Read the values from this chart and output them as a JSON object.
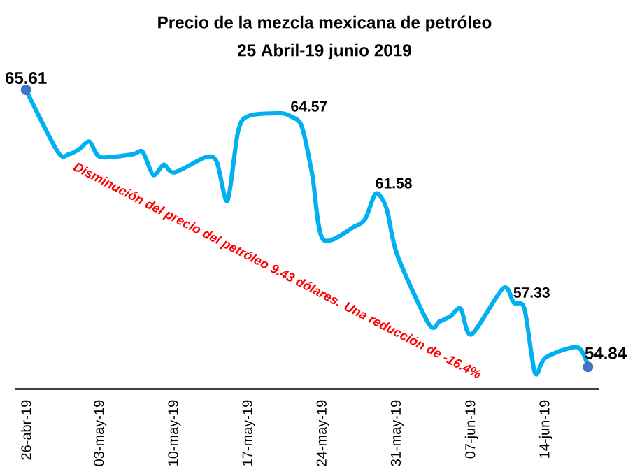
{
  "chart_data": {
    "type": "line",
    "title": "Precio de la mezcla mexicana de petróleo",
    "subtitle": "25 Abril-19 junio 2019",
    "x": [
      "2019-04-26",
      "2019-04-29",
      "2019-04-30",
      "2019-05-01",
      "2019-05-02",
      "2019-05-03",
      "2019-05-06",
      "2019-05-07",
      "2019-05-08",
      "2019-05-09",
      "2019-05-10",
      "2019-05-13",
      "2019-05-14",
      "2019-05-15",
      "2019-05-16",
      "2019-05-17",
      "2019-05-20",
      "2019-05-21",
      "2019-05-22",
      "2019-05-23",
      "2019-05-24",
      "2019-05-27",
      "2019-05-28",
      "2019-05-29",
      "2019-05-30",
      "2019-05-31",
      "2019-06-03",
      "2019-06-04",
      "2019-06-05",
      "2019-06-06",
      "2019-06-07",
      "2019-06-10",
      "2019-06-11",
      "2019-06-12",
      "2019-06-13",
      "2019-06-14",
      "2019-06-17",
      "2019-06-18"
    ],
    "series": [
      {
        "color": "#00b0f0",
        "values": [
          65.61,
          63.2,
          63.1,
          63.3,
          63.6,
          63.0,
          63.1,
          63.2,
          62.3,
          62.7,
          62.4,
          63.0,
          62.8,
          61.3,
          64.0,
          64.6,
          64.7,
          64.57,
          64.2,
          62.3,
          59.8,
          60.3,
          60.6,
          61.58,
          61.0,
          59.2,
          56.5,
          56.6,
          56.8,
          57.1,
          56.1,
          57.9,
          57.33,
          57.1,
          54.6,
          55.2,
          55.6,
          54.84
        ],
        "value_labels": [
          "65.61",
          null,
          null,
          null,
          null,
          null,
          null,
          null,
          null,
          null,
          null,
          null,
          null,
          null,
          null,
          null,
          null,
          "64.57",
          null,
          null,
          null,
          null,
          null,
          "61.58",
          null,
          null,
          null,
          null,
          null,
          null,
          null,
          null,
          "57.33",
          null,
          null,
          null,
          null,
          "54.84"
        ]
      },
      {
        "type": "scatter",
        "color": "#4472c4",
        "marker": "circle",
        "x": [
          "2019-04-26",
          "2019-06-18"
        ],
        "values": [
          65.61,
          54.84
        ]
      }
    ],
    "xlim": [
      "2019-04-25",
      "2019-06-19"
    ],
    "xticks": [
      {
        "value": "2019-04-26",
        "label": "26-abr-19"
      },
      {
        "value": "2019-05-03",
        "label": "03-may-19"
      },
      {
        "value": "2019-05-10",
        "label": "10-may-19"
      },
      {
        "value": "2019-05-17",
        "label": "17-may-19"
      },
      {
        "value": "2019-05-24",
        "label": "24-may-19"
      },
      {
        "value": "2019-05-31",
        "label": "31-may-19"
      },
      {
        "value": "2019-06-07",
        "label": "07-jun-19"
      },
      {
        "value": "2019-06-14",
        "label": "14-jun-19"
      }
    ],
    "tick_labels": "x",
    "annotations": [
      "Disminución del precio del petróleo 9.43 dólares. Una reducción de -16.4%"
    ]
  }
}
